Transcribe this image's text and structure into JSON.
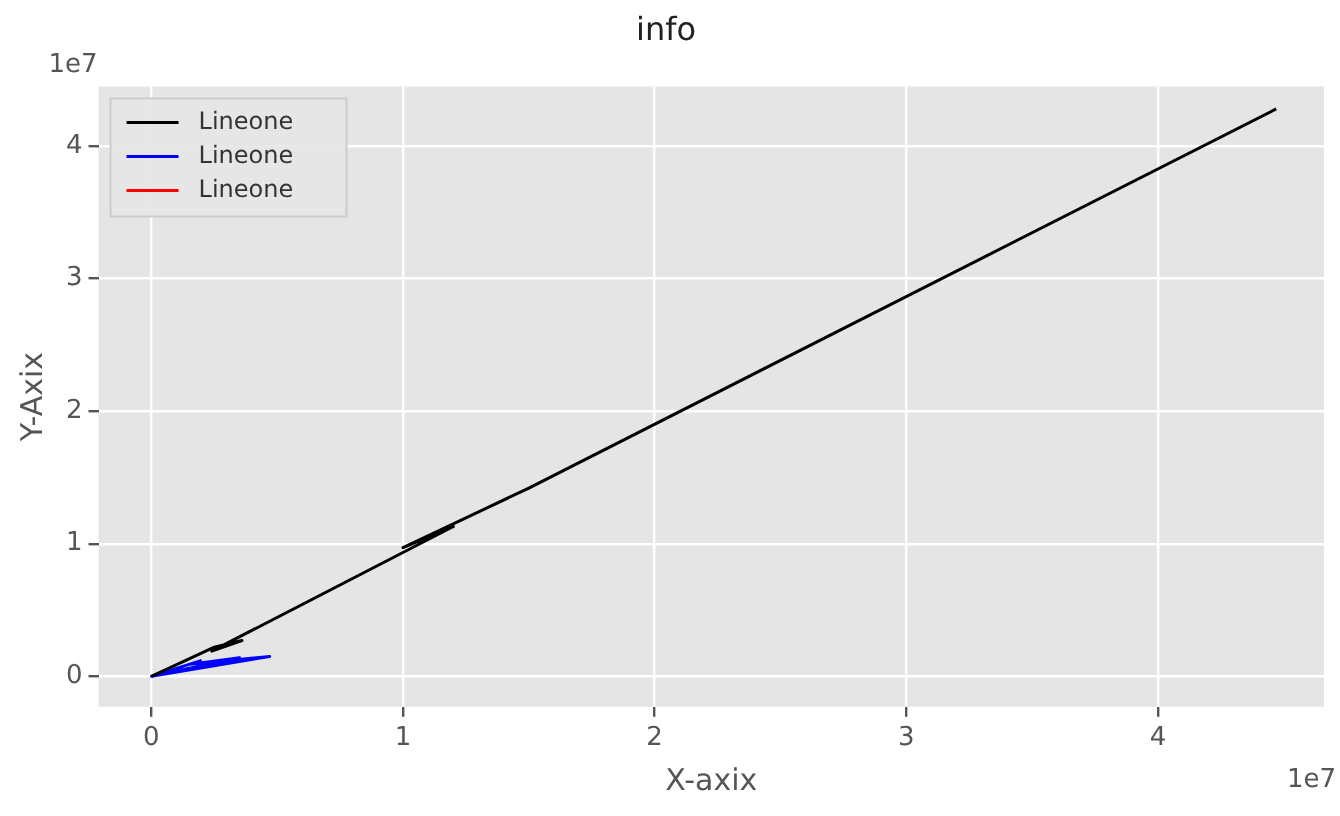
{
  "chart_data": {
    "type": "line",
    "title": "info",
    "xlabel": "X-axix",
    "ylabel": "Y-Axix",
    "xlim": [
      -0.21,
      4.66
    ],
    "ylim": [
      -0.23,
      4.45
    ],
    "xticks": [
      0,
      1,
      2,
      3,
      4
    ],
    "yticks": [
      0,
      1,
      2,
      3,
      4
    ],
    "annotations": [
      "1e7",
      "1e7"
    ],
    "series": [
      {
        "name": "Lineone",
        "color": "#000000",
        "x": [
          0,
          0.25,
          0.36,
          0.24,
          1.2,
          1.0,
          1.5,
          4.47
        ],
        "values": [
          0,
          0.22,
          0.27,
          0.19,
          1.13,
          0.97,
          1.42,
          4.28
        ]
      },
      {
        "name": "Lineone",
        "color": "#0000ff",
        "x": [
          0,
          0.47,
          0.15,
          0.35,
          0,
          0.2
        ],
        "values": [
          0,
          0.15,
          0.09,
          0.14,
          0,
          0.12
        ]
      },
      {
        "name": "Lineone",
        "color": "#ff0000"
      }
    ],
    "grid": true,
    "legend": "top left",
    "marker": "none",
    "line_style": "solid"
  }
}
